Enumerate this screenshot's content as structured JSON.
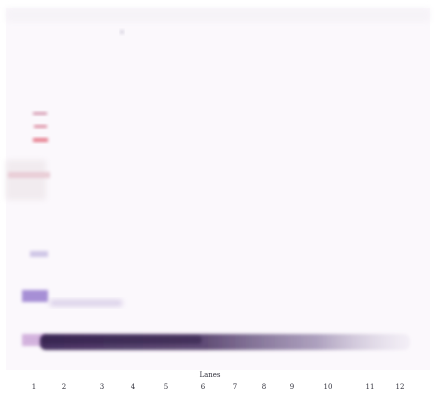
{
  "blot": {
    "membrane_color": "#fbf8fc",
    "band_color": "#4a2f63",
    "marker_colors": [
      "#d9a3b6",
      "#e67b8c",
      "#8a6cc9",
      "#b7a7dd"
    ],
    "axis_title": "Lanes",
    "lane_labels": [
      "1",
      "2",
      "3",
      "4",
      "5",
      "6",
      "7",
      "8",
      "9",
      "10",
      "11",
      "12"
    ]
  }
}
